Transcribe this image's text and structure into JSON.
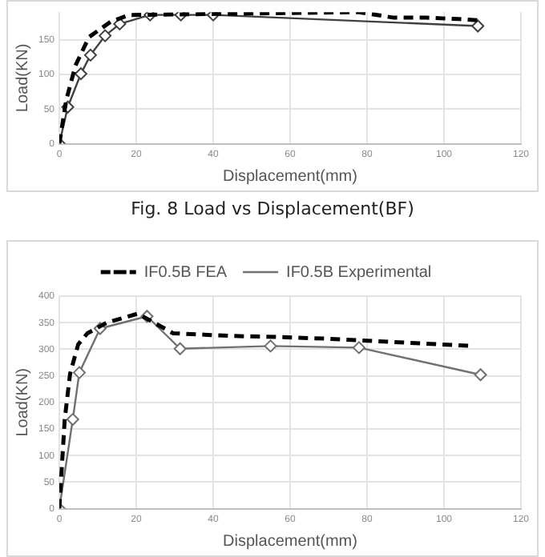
{
  "chart_data": [
    {
      "type": "line",
      "xlabel": "Displacement(mm)",
      "ylabel": "Load(KN)",
      "xlim": [
        0,
        120
      ],
      "xticks": [
        0,
        20,
        40,
        60,
        80,
        100,
        120
      ],
      "ylim": [
        0,
        190
      ],
      "yticks": [
        0,
        50,
        100,
        150
      ],
      "grid": true,
      "legend": false,
      "annotations": [
        "Fig. 8 Load vs Displacement(BF)"
      ],
      "series": [
        {
          "color": "#000000",
          "line_style": "dashed",
          "marker": "none",
          "x": [
            0,
            1.8,
            4.2,
            7.7,
            13.3,
            18.2,
            78,
            87,
            95.4,
            103.9,
            110.2
          ],
          "values": [
            0,
            63,
            113,
            154,
            176,
            186,
            190,
            182,
            182,
            180,
            178
          ]
        },
        {
          "color": "#404040",
          "line_style": "solid",
          "marker": "diamond",
          "x": [
            0,
            2.2,
            5.6,
            8.1,
            11.9,
            15.7,
            23.6,
            31.6,
            40,
            108.8
          ],
          "values": [
            0,
            53,
            101,
            128,
            156,
            173,
            186,
            186,
            186,
            170
          ]
        }
      ]
    },
    {
      "type": "line",
      "xlabel": "Displacement(mm)",
      "ylabel": "Load(KN)",
      "xlim": [
        0,
        120
      ],
      "xticks": [
        0,
        20,
        40,
        60,
        80,
        100,
        120
      ],
      "ylim": [
        0,
        400
      ],
      "yticks": [
        0,
        50,
        100,
        150,
        200,
        250,
        300,
        350,
        400
      ],
      "grid": true,
      "legend": "top",
      "series": [
        {
          "name": "IF0.5B FEA",
          "color": "#000000",
          "line_style": "dashed",
          "marker": "none",
          "x": [
            0,
            1.4,
            2.8,
            4.9,
            7.3,
            12.3,
            20.4,
            29.6,
            45,
            57,
            69,
            107.7
          ],
          "values": [
            0,
            168,
            254,
            309,
            330,
            350,
            367,
            330,
            325,
            323,
            320,
            306
          ]
        },
        {
          "name": "IF0.5B Experimental",
          "color": "#707070",
          "line_style": "solid",
          "marker": "diamond",
          "x": [
            0,
            3.5,
            5.2,
            10.6,
            22.8,
            31.4,
            54.9,
            77.9,
            109.5
          ],
          "values": [
            0,
            168,
            256,
            339,
            362,
            301,
            306,
            303,
            252
          ]
        }
      ]
    }
  ]
}
